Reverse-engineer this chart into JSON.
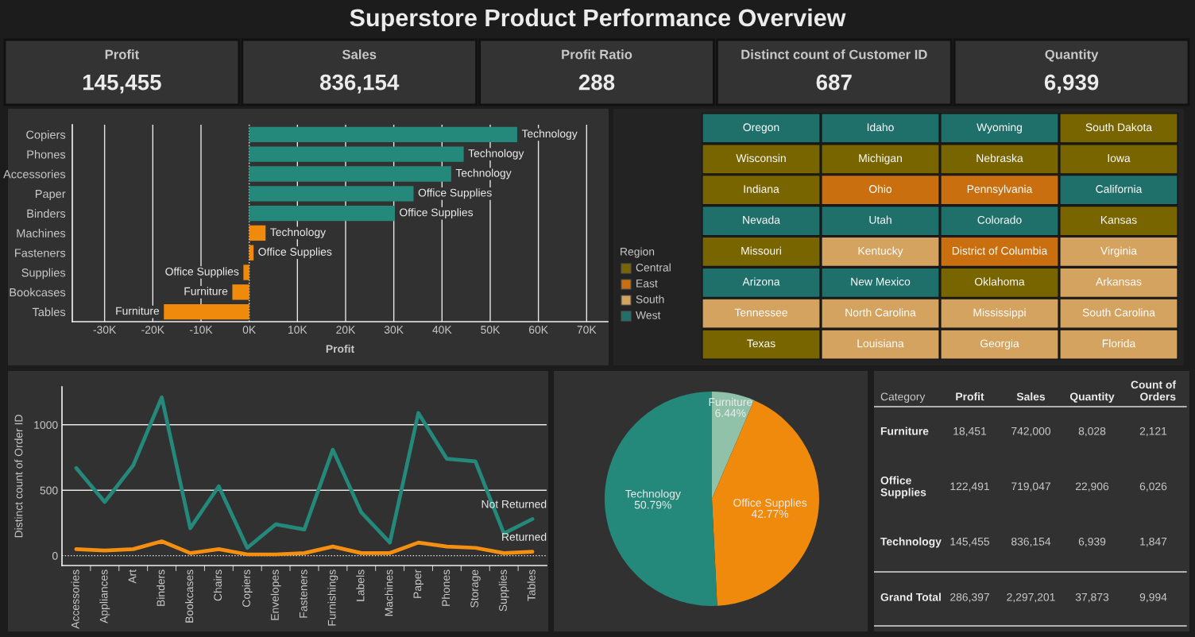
{
  "chart_data": [
    {
      "type": "other",
      "title": "Superstore Product Performance Overview",
      "categories": [
        "Profit",
        "Sales",
        "Profit Ratio",
        "Distinct count of Customer ID",
        "Quantity"
      ],
      "value_labels": [
        "145,455",
        "836,154",
        "288",
        "687",
        "6,939"
      ]
    },
    {
      "type": "bar",
      "orientation": "horizontal",
      "categories": [
        "Copiers",
        "Phones",
        "Accessories",
        "Paper",
        "Binders",
        "Machines",
        "Fasteners",
        "Supplies",
        "Bookcases",
        "Tables"
      ],
      "values": [
        55600,
        44500,
        41900,
        34100,
        30200,
        3400,
        900,
        -1200,
        -3500,
        -17700
      ],
      "colors": [
        "#24897b",
        "#24897b",
        "#24897b",
        "#24897b",
        "#24897b",
        "#f08a0c",
        "#f08a0c",
        "#f08a0c",
        "#f08a0c",
        "#f08a0c"
      ],
      "xlabel": "Profit",
      "xlim": [
        -36700,
        74400
      ],
      "xticks": [
        {
          "value": -30000,
          "label": "-30K"
        },
        {
          "value": -20000,
          "label": "-20K"
        },
        {
          "value": -10000,
          "label": "-10K"
        },
        {
          "value": 0,
          "label": "0K"
        },
        {
          "value": 10000,
          "label": "10K"
        },
        {
          "value": 20000,
          "label": "20K"
        },
        {
          "value": 30000,
          "label": "30K"
        },
        {
          "value": 40000,
          "label": "40K"
        },
        {
          "value": 50000,
          "label": "50K"
        },
        {
          "value": 60000,
          "label": "60K"
        },
        {
          "value": 70000,
          "label": "70K"
        }
      ],
      "grid": "x",
      "ref_lines": [
        {
          "axis": "x",
          "value": 0,
          "line_style": "dotted"
        }
      ],
      "annotations": [
        {
          "text": "Technology",
          "x": 55600,
          "y": "Copiers"
        },
        {
          "text": "Technology",
          "x": 44500,
          "y": "Phones"
        },
        {
          "text": "Technology",
          "x": 41900,
          "y": "Accessories"
        },
        {
          "text": "Office Supplies",
          "x": 34100,
          "y": "Paper"
        },
        {
          "text": "Office Supplies",
          "x": 30200,
          "y": "Binders"
        },
        {
          "text": "Technology",
          "x": 3400,
          "y": "Machines"
        },
        {
          "text": "Office Supplies",
          "x": 900,
          "y": "Fasteners"
        },
        {
          "text": "Office Supplies",
          "x": -1200,
          "y": "Supplies"
        },
        {
          "text": "Furniture",
          "x": -3500,
          "y": "Bookcases"
        },
        {
          "text": "Furniture",
          "x": -17700,
          "y": "Tables"
        }
      ]
    },
    {
      "type": "other",
      "legend_title": "Region",
      "categories": [
        "Central",
        "East",
        "South",
        "West"
      ],
      "colors": [
        "#786500",
        "#c96f10",
        "#d4a360",
        "#1f6f6a"
      ],
      "annotations": [
        {
          "text": "Oregon",
          "y": "West"
        },
        {
          "text": "Idaho",
          "y": "West"
        },
        {
          "text": "Wyoming",
          "y": "West"
        },
        {
          "text": "South Dakota",
          "y": "Central"
        },
        {
          "text": "Wisconsin",
          "y": "Central"
        },
        {
          "text": "Michigan",
          "y": "Central"
        },
        {
          "text": "Nebraska",
          "y": "Central"
        },
        {
          "text": "Iowa",
          "y": "Central"
        },
        {
          "text": "Indiana",
          "y": "Central"
        },
        {
          "text": "Ohio",
          "y": "East"
        },
        {
          "text": "Pennsylvania",
          "y": "East"
        },
        {
          "text": "California",
          "y": "West"
        },
        {
          "text": "Nevada",
          "y": "West"
        },
        {
          "text": "Utah",
          "y": "West"
        },
        {
          "text": "Colorado",
          "y": "West"
        },
        {
          "text": "Kansas",
          "y": "Central"
        },
        {
          "text": "Missouri",
          "y": "Central"
        },
        {
          "text": "Kentucky",
          "y": "South"
        },
        {
          "text": "District of Columbia",
          "y": "East"
        },
        {
          "text": "Virginia",
          "y": "South"
        },
        {
          "text": "Arizona",
          "y": "West"
        },
        {
          "text": "New Mexico",
          "y": "West"
        },
        {
          "text": "Oklahoma",
          "y": "Central"
        },
        {
          "text": "Arkansas",
          "y": "South"
        },
        {
          "text": "Tennessee",
          "y": "South"
        },
        {
          "text": "North Carolina",
          "y": "South"
        },
        {
          "text": "Mississippi",
          "y": "South"
        },
        {
          "text": "South Carolina",
          "y": "South"
        },
        {
          "text": "Texas",
          "y": "Central"
        },
        {
          "text": "Louisiana",
          "y": "South"
        },
        {
          "text": "Georgia",
          "y": "South"
        },
        {
          "text": "Florida",
          "y": "South"
        }
      ]
    },
    {
      "type": "line",
      "categories": [
        "Accessories",
        "Appliances",
        "Art",
        "Binders",
        "Bookcases",
        "Chairs",
        "Copiers",
        "Envelopes",
        "Fasteners",
        "Furnishings",
        "Labels",
        "Machines",
        "Paper",
        "Phones",
        "Storage",
        "Supplies",
        "Tables"
      ],
      "series": [
        {
          "name": "Not Returned",
          "color": "#24897b",
          "values": [
            670,
            410,
            690,
            1210,
            210,
            530,
            60,
            240,
            200,
            810,
            330,
            100,
            1090,
            740,
            720,
            170,
            280
          ]
        },
        {
          "name": "Returned",
          "color": "#f48f12",
          "values": [
            50,
            40,
            50,
            110,
            20,
            50,
            10,
            10,
            20,
            70,
            20,
            20,
            100,
            70,
            60,
            20,
            30
          ]
        }
      ],
      "ylabel": "Distinct count of Order ID",
      "ylim": [
        -75,
        1290
      ],
      "yticks": [
        0,
        500,
        1000
      ],
      "grid": "y",
      "ref_lines": [
        {
          "axis": "y",
          "value": 0,
          "line_style": "dotted"
        }
      ]
    },
    {
      "type": "pie",
      "categories": [
        "Furniture",
        "Office Supplies",
        "Technology"
      ],
      "values": [
        6.44,
        42.77,
        50.79
      ],
      "colors": [
        "#8fc2a8",
        "#f08a0c",
        "#24897b"
      ],
      "value_labels": [
        "6.44%",
        "42.77%",
        "50.79%"
      ]
    },
    {
      "type": "other",
      "ylabel": "Category",
      "categories": [
        "Profit",
        "Sales",
        "Quantity",
        "Count of\nOrders"
      ],
      "y_categories": [
        "Furniture",
        "Office\nSupplies",
        "Technology",
        "Grand Total"
      ],
      "cell_labels": [
        [
          "18,451",
          "742,000",
          "8,028",
          "2,121"
        ],
        [
          "122,491",
          "719,047",
          "22,906",
          "6,026"
        ],
        [
          "145,455",
          "836,154",
          "6,939",
          "1,847"
        ],
        [
          "286,397",
          "2,297,201",
          "37,873",
          "9,994"
        ]
      ]
    }
  ]
}
